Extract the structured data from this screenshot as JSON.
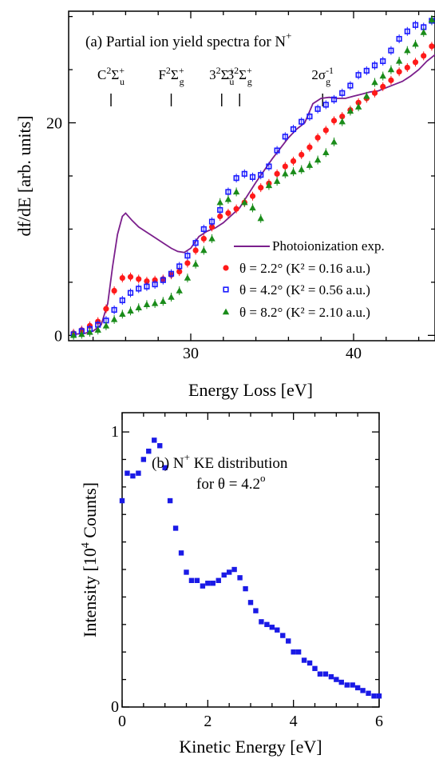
{
  "chart_data": [
    {
      "type": "scatter",
      "title": "(a) Partial ion yield spectra for N",
      "title_sup": "+",
      "xlabel": "Energy Loss [eV]",
      "ylabel": "df/dE [arb. units]",
      "xlim": [
        22.5,
        45
      ],
      "ylim": [
        -0.5,
        30.5
      ],
      "xticks": [
        "30",
        "40"
      ],
      "yticks": [
        "0",
        "20"
      ],
      "state_labels": [
        {
          "x": 25.1,
          "base": "C",
          "sup": "2",
          "sym": "Σ",
          "ssup": "+",
          "sub": "u"
        },
        {
          "x": 28.8,
          "base": "F",
          "sup": "2",
          "sym": "Σ",
          "ssup": "+",
          "sub": "g"
        },
        {
          "x": 31.9,
          "base": "3",
          "sup": "2",
          "sym": "Σ",
          "ssup": "+",
          "sub": "u"
        },
        {
          "x": 33.0,
          "base": "3",
          "sup": "2",
          "sym": "Σ",
          "ssup": "+",
          "sub": "g"
        },
        {
          "x": 38.1,
          "base": "2σ",
          "sup": "-1",
          "sym": "",
          "ssup": "",
          "sub": "g"
        }
      ],
      "legend_placement": "bottom-right",
      "series": [
        {
          "name": "Photoionization exp.",
          "kind": "line",
          "color": "#7b1f8c",
          "x": [
            22.8,
            23.5,
            24.0,
            24.5,
            24.9,
            25.2,
            25.5,
            25.8,
            26.0,
            26.4,
            26.8,
            27.2,
            27.6,
            28.0,
            28.4,
            28.8,
            29.2,
            29.6,
            30.0,
            30.5,
            31.0,
            31.5,
            32.0,
            32.5,
            33.0,
            33.5,
            34.0,
            34.5,
            35.0,
            35.5,
            36.0,
            36.5,
            37.0,
            37.5,
            38.0,
            38.5,
            39.0,
            39.5,
            40.0,
            40.5,
            41.0,
            41.5,
            42.0,
            42.5,
            43.0,
            43.5,
            44.0,
            44.5,
            45.0
          ],
          "y": [
            0.1,
            0.2,
            0.4,
            1.0,
            3.0,
            6.5,
            9.5,
            11.2,
            11.5,
            10.8,
            10.2,
            9.8,
            9.4,
            9.0,
            8.6,
            8.2,
            7.9,
            7.8,
            8.2,
            9.3,
            9.8,
            10.1,
            10.6,
            11.3,
            12.0,
            13.2,
            14.4,
            15.5,
            16.6,
            17.6,
            18.6,
            19.4,
            20.0,
            21.8,
            22.3,
            22.4,
            22.3,
            22.3,
            22.5,
            22.7,
            22.9,
            23.0,
            23.3,
            23.6,
            23.9,
            24.4,
            25.0,
            25.8,
            26.4
          ]
        },
        {
          "name": "θ = 2.2° (K² = 0.16 a.u.)",
          "kind": "points",
          "marker": "circle",
          "color": "#ff1a1a",
          "x": [
            22.8,
            23.3,
            23.8,
            24.3,
            24.8,
            25.3,
            25.8,
            26.3,
            26.8,
            27.3,
            27.8,
            28.3,
            28.8,
            29.3,
            29.8,
            30.3,
            30.8,
            31.3,
            31.8,
            32.3,
            32.8,
            33.3,
            33.8,
            34.3,
            34.8,
            35.3,
            35.8,
            36.3,
            36.8,
            37.3,
            37.8,
            38.3,
            38.8,
            39.3,
            39.8,
            40.3,
            40.8,
            41.3,
            41.8,
            42.3,
            42.8,
            43.3,
            43.8,
            44.3,
            44.8
          ],
          "y": [
            0.2,
            0.5,
            0.9,
            1.3,
            2.5,
            4.2,
            5.4,
            5.5,
            5.3,
            5.1,
            5.2,
            5.3,
            5.7,
            6.0,
            6.8,
            8.0,
            9.1,
            10.2,
            11.2,
            11.5,
            11.9,
            12.5,
            13.1,
            13.9,
            14.3,
            15.2,
            15.9,
            16.4,
            17.0,
            17.7,
            18.6,
            19.3,
            20.2,
            20.6,
            21.2,
            21.9,
            22.3,
            22.8,
            23.4,
            24.0,
            24.8,
            25.2,
            25.7,
            26.3,
            27.2
          ]
        },
        {
          "name": "θ = 4.2° (K² = 0.56 a.u.)",
          "kind": "points",
          "marker": "square",
          "color": "#1a1aff",
          "x": [
            22.8,
            23.3,
            23.8,
            24.3,
            24.8,
            25.3,
            25.8,
            26.3,
            26.8,
            27.3,
            27.8,
            28.3,
            28.8,
            29.3,
            29.8,
            30.3,
            30.8,
            31.3,
            31.8,
            32.3,
            32.8,
            33.3,
            33.8,
            34.3,
            34.8,
            35.3,
            35.8,
            36.3,
            36.8,
            37.3,
            37.8,
            38.3,
            38.8,
            39.3,
            39.8,
            40.3,
            40.8,
            41.3,
            41.8,
            42.3,
            42.8,
            43.3,
            43.8,
            44.3,
            44.8
          ],
          "y": [
            0.1,
            0.4,
            0.6,
            1.0,
            1.4,
            2.4,
            3.3,
            4.0,
            4.4,
            4.6,
            4.8,
            5.2,
            5.8,
            6.5,
            7.5,
            8.7,
            10.0,
            10.7,
            11.8,
            13.5,
            14.8,
            15.2,
            14.9,
            15.1,
            15.9,
            17.4,
            18.7,
            19.4,
            20.1,
            20.6,
            21.3,
            21.7,
            22.2,
            22.8,
            23.5,
            24.5,
            24.9,
            25.4,
            25.8,
            26.8,
            27.9,
            28.6,
            29.2,
            29.0,
            29.6
          ]
        },
        {
          "name": "θ = 8.2° (K² = 2.10 a.u.)",
          "kind": "points",
          "marker": "triangle",
          "color": "#1a8c1a",
          "x": [
            22.8,
            23.3,
            23.8,
            24.3,
            24.8,
            25.3,
            25.8,
            26.3,
            26.8,
            27.3,
            27.8,
            28.3,
            28.8,
            29.3,
            29.8,
            30.3,
            30.8,
            31.3,
            31.8,
            32.3,
            32.8,
            33.3,
            33.8,
            34.3,
            34.8,
            35.3,
            35.8,
            36.3,
            36.8,
            37.3,
            37.8,
            38.3,
            38.8,
            39.3,
            39.8,
            40.3,
            40.8,
            41.3,
            41.8,
            42.3,
            42.8,
            43.3,
            43.8,
            44.3,
            44.8
          ],
          "y": [
            0.0,
            0.1,
            0.3,
            0.5,
            0.9,
            1.5,
            2.0,
            2.3,
            2.6,
            2.9,
            3.0,
            3.2,
            3.6,
            4.2,
            5.4,
            6.7,
            8.0,
            9.1,
            12.5,
            12.8,
            13.5,
            12.5,
            12.0,
            11.0,
            14.1,
            14.5,
            15.2,
            15.4,
            15.6,
            16.0,
            16.5,
            17.2,
            18.2,
            20.1,
            21.1,
            21.5,
            22.5,
            23.8,
            24.4,
            25.0,
            25.8,
            26.8,
            27.4,
            28.5,
            29.7
          ]
        }
      ]
    },
    {
      "type": "scatter",
      "title": "(b) N",
      "title_sup": "+",
      "title_tail": " KE distribution",
      "title_line2_prefix": "for θ = 4.2",
      "title_line2_sup": "o",
      "xlabel": "Kinetic Energy [eV]",
      "ylabel_base": "Intensity [10",
      "ylabel_sup": "4",
      "ylabel_tail": " Counts]",
      "xlim": [
        0,
        6
      ],
      "ylim": [
        0,
        1.07
      ],
      "xticks": [
        "0",
        "2",
        "4",
        "6"
      ],
      "yticks": [
        "0",
        "1"
      ],
      "series": [
        {
          "kind": "points",
          "marker": "square",
          "color": "#1a1ae6",
          "x": [
            0.0,
            0.12,
            0.25,
            0.38,
            0.5,
            0.62,
            0.75,
            0.88,
            1.0,
            1.12,
            1.25,
            1.38,
            1.5,
            1.62,
            1.75,
            1.88,
            2.0,
            2.12,
            2.25,
            2.38,
            2.5,
            2.62,
            2.75,
            2.88,
            3.0,
            3.12,
            3.25,
            3.38,
            3.5,
            3.62,
            3.75,
            3.88,
            4.0,
            4.12,
            4.25,
            4.38,
            4.5,
            4.62,
            4.75,
            4.88,
            5.0,
            5.12,
            5.25,
            5.38,
            5.5,
            5.62,
            5.75,
            5.88,
            6.0
          ],
          "y": [
            0.75,
            0.85,
            0.84,
            0.85,
            0.9,
            0.93,
            0.97,
            0.95,
            0.87,
            0.75,
            0.65,
            0.56,
            0.49,
            0.46,
            0.46,
            0.44,
            0.45,
            0.45,
            0.46,
            0.48,
            0.49,
            0.5,
            0.47,
            0.43,
            0.38,
            0.35,
            0.31,
            0.3,
            0.29,
            0.28,
            0.26,
            0.24,
            0.2,
            0.2,
            0.17,
            0.16,
            0.14,
            0.12,
            0.12,
            0.11,
            0.1,
            0.09,
            0.08,
            0.08,
            0.07,
            0.06,
            0.05,
            0.04,
            0.04
          ]
        }
      ]
    }
  ]
}
